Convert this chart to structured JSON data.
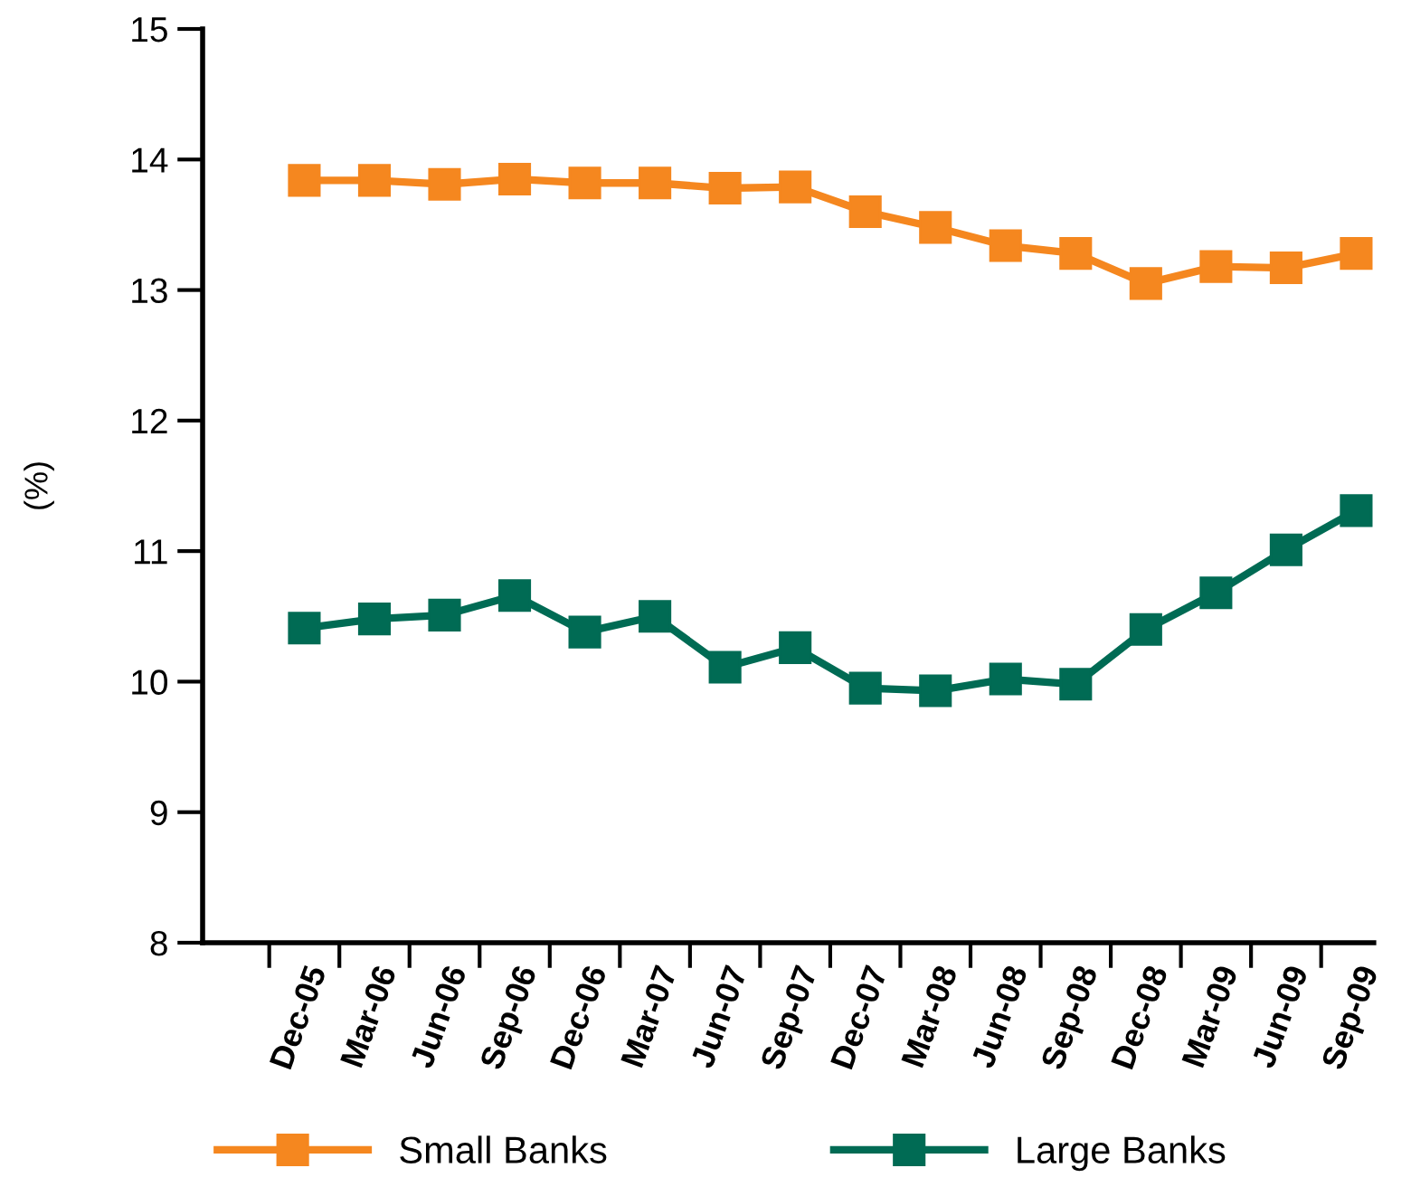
{
  "chart_data": {
    "type": "line",
    "ylabel": "(%)",
    "categories": [
      "Dec-05",
      "Mar-06",
      "Jun-06",
      "Sep-06",
      "Dec-06",
      "Mar-07",
      "Jun-07",
      "Sep-07",
      "Dec-07",
      "Mar-08",
      "Jun-08",
      "Sep-08",
      "Dec-08",
      "Mar-09",
      "Jun-09",
      "Sep-09"
    ],
    "series": [
      {
        "name": "Small Banks",
        "color": "#f5871f",
        "values": [
          13.84,
          13.84,
          13.81,
          13.85,
          13.82,
          13.82,
          13.78,
          13.79,
          13.6,
          13.48,
          13.34,
          13.28,
          13.05,
          13.18,
          13.17,
          13.28
        ]
      },
      {
        "name": "Large Banks",
        "color": "#006b54",
        "values": [
          10.41,
          10.48,
          10.51,
          10.66,
          10.38,
          10.5,
          10.11,
          10.26,
          9.95,
          9.93,
          10.02,
          9.98,
          10.4,
          10.68,
          11.01,
          11.31
        ]
      }
    ],
    "ylim": [
      8,
      15
    ],
    "yticks": [
      8,
      9,
      10,
      11,
      12,
      13,
      14,
      15
    ],
    "grid": false,
    "legend": "bottom",
    "marker": "square",
    "line_style": "solid"
  }
}
